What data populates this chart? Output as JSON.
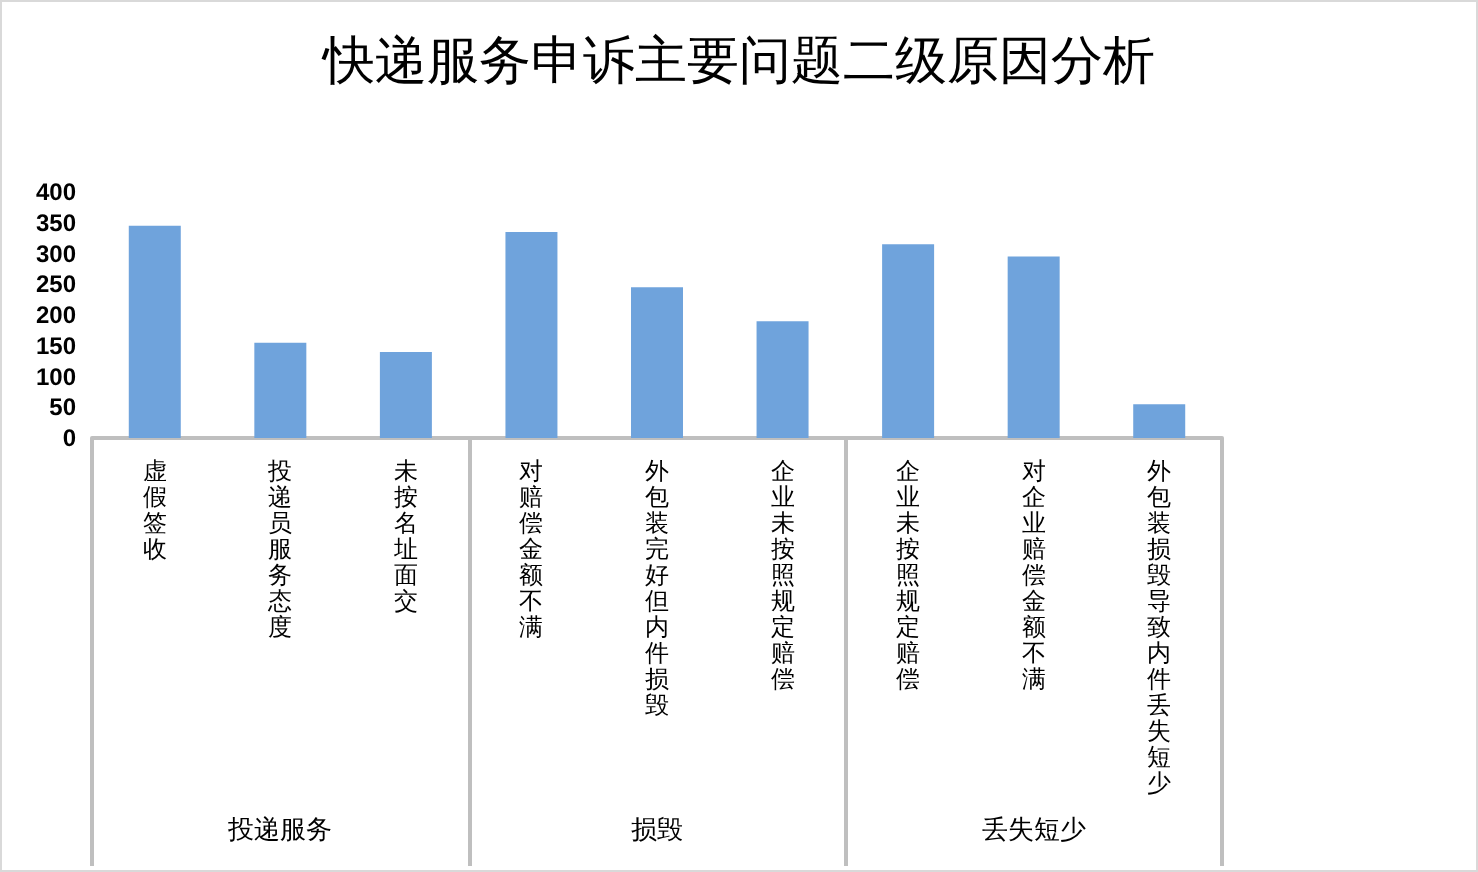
{
  "chart_data": {
    "type": "bar",
    "title": "快递服务申诉主要问题二级原因分析",
    "categories": [
      "虚假签收",
      "投递员服务态度",
      "未按名址面交",
      "对赔偿金额不满",
      "外包装完好但内件损毁",
      "企业未按照规定赔偿",
      "企业未按照规定赔偿",
      "对企业赔偿金额不满",
      "外包装损毁导致内件丢失短少"
    ],
    "values": [
      345,
      155,
      140,
      335,
      245,
      190,
      315,
      295,
      55
    ],
    "color": "#6fa3dc",
    "annotations": [
      "投递服务",
      "损毁",
      "丢失短少"
    ],
    "ylim": [
      0,
      400
    ],
    "yticks": [
      0,
      50,
      100,
      150,
      200,
      250,
      300,
      350,
      400
    ],
    "grid": false
  }
}
